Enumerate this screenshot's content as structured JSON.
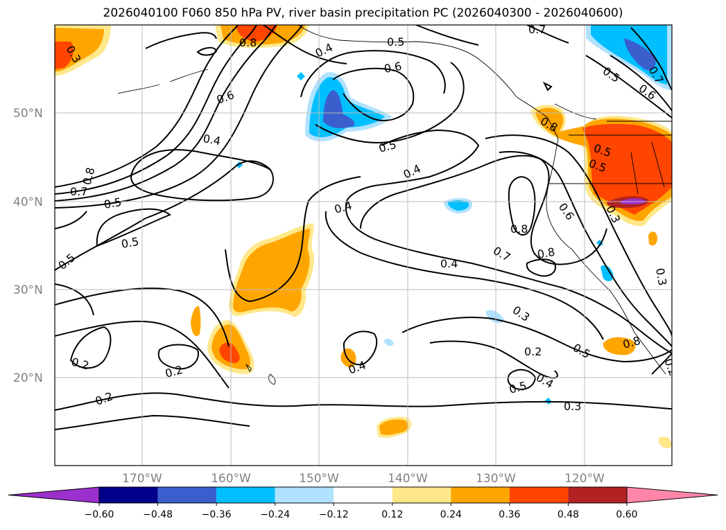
{
  "title": "2026040100 F060 850 hPa PV, river basin precipitation PC (2026040300 - 2026040600)",
  "lat_labels": [
    "50°N",
    "40°N",
    "30°N",
    "20°N"
  ],
  "lon_labels": [
    "170°W",
    "160°W",
    "150°W",
    "140°W",
    "130°W",
    "120°W"
  ],
  "contour_labels": [
    "0.7",
    "0.8",
    "0.6",
    "0.5",
    "0.4",
    "0.5",
    "0.6",
    "0.5",
    "0.6",
    "0.7",
    "0.4",
    "0.5",
    "0.4",
    "0.7",
    "0.8",
    "0.5",
    "0.5",
    "0.4",
    "0.5",
    "0.8",
    "0.6",
    "0.3",
    "0.5",
    "0.4",
    "0.7",
    "0.8",
    "0.3",
    "0.2",
    "0.2",
    "0.2",
    "0.4",
    "0.3",
    "0.2",
    "0.5",
    "0.5",
    "0.4",
    "0.3",
    "0.8",
    "0.8",
    "0.3",
    "0.2"
  ],
  "colorbar": {
    "ticks": [
      "−0.60",
      "−0.48",
      "−0.36",
      "−0.24",
      "−0.12",
      "0.12",
      "0.24",
      "0.36",
      "0.48",
      "0.60"
    ],
    "colors": [
      "#9b30cc",
      "#00008b",
      "#3a5fcd",
      "#00bfff",
      "#b0e2ff",
      "#ffffff",
      "#ffe88a",
      "#ffa500",
      "#ff4500",
      "#b22222",
      "#ff86a8"
    ]
  }
}
